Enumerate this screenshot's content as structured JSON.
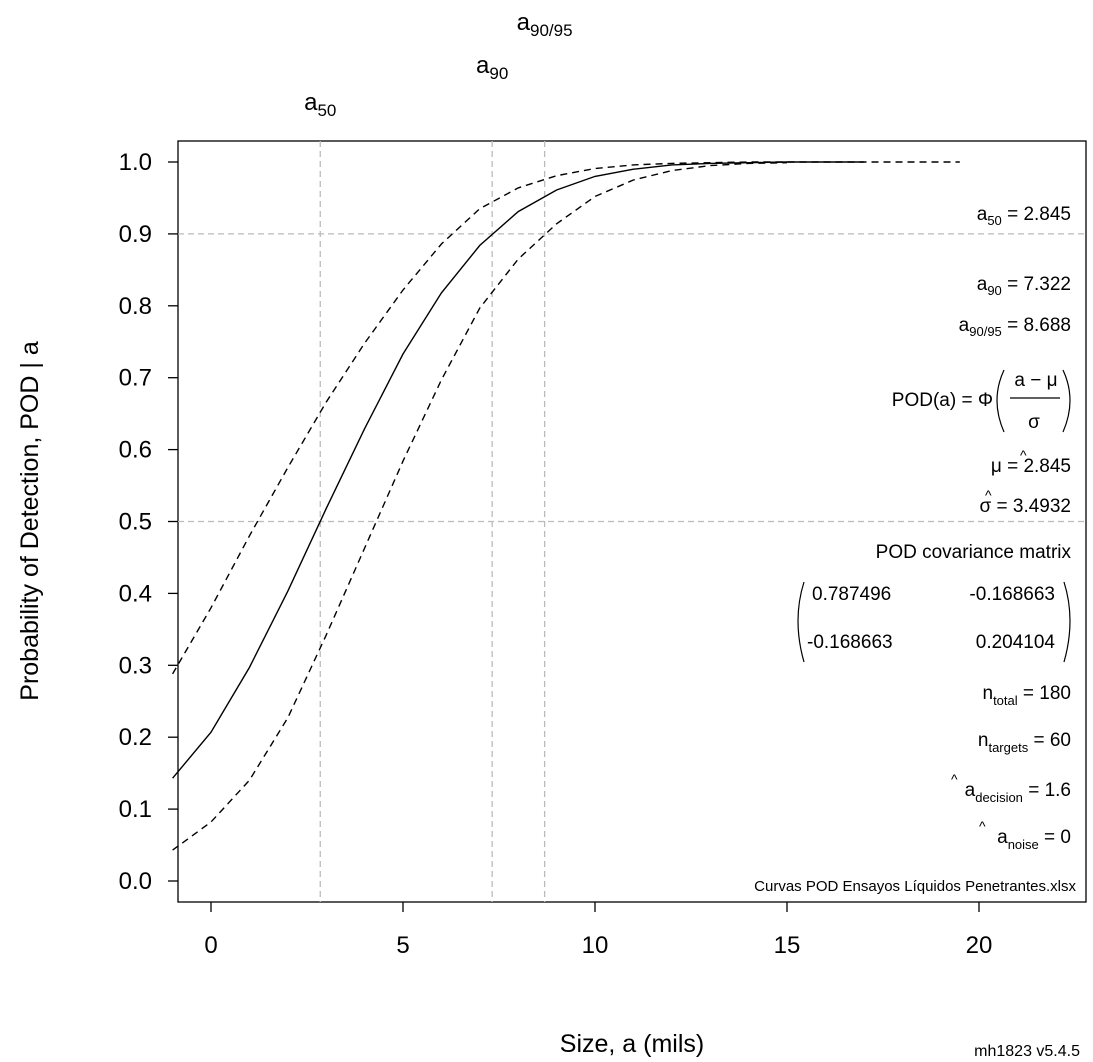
{
  "chart_data": {
    "type": "line",
    "xlabel": "Size, a  (mils)",
    "ylabel": "Probability of Detection, POD | a",
    "xlim": [
      -1.4,
      22.6
    ],
    "ylim": [
      0,
      1
    ],
    "xticks": [
      0,
      5,
      10,
      15,
      20
    ],
    "yticks": [
      0.0,
      0.1,
      0.2,
      0.3,
      0.4,
      0.5,
      0.6,
      0.7,
      0.8,
      0.9,
      1.0
    ],
    "grid": false,
    "legend": "none",
    "model": {
      "mu": 2.845,
      "sigma": 3.4932
    },
    "series": [
      {
        "style": "solid",
        "color": "#000000",
        "x": [
          -1,
          0,
          1,
          2,
          3,
          4,
          5,
          6,
          7,
          8,
          9,
          10,
          11,
          12,
          13,
          14,
          15,
          16,
          17
        ],
        "y": [
          0.143,
          0.207,
          0.297,
          0.403,
          0.518,
          0.629,
          0.733,
          0.818,
          0.884,
          0.931,
          0.961,
          0.98,
          0.99,
          0.996,
          0.998,
          0.999,
          1.0,
          1.0,
          1.0
        ]
      },
      {
        "style": "dashed",
        "color": "#000000",
        "x": [
          -1,
          0,
          1,
          2,
          3,
          4,
          5,
          6,
          7,
          8,
          9,
          10,
          11,
          12,
          13,
          14,
          15,
          16,
          17,
          18,
          19,
          19.5
        ],
        "y": [
          0.288,
          0.38,
          0.48,
          0.575,
          0.666,
          0.748,
          0.822,
          0.886,
          0.935,
          0.964,
          0.981,
          0.991,
          0.996,
          0.998,
          0.999,
          1.0,
          1.0,
          1.0,
          1.0,
          1.0,
          1.0,
          1.0
        ]
      },
      {
        "style": "dashed",
        "color": "#000000",
        "x": [
          -1,
          0,
          1,
          2,
          3,
          4,
          5,
          6,
          7,
          8,
          9,
          10,
          11,
          12,
          13,
          14,
          15
        ],
        "y": [
          0.043,
          0.082,
          0.14,
          0.227,
          0.342,
          0.463,
          0.584,
          0.697,
          0.797,
          0.865,
          0.914,
          0.952,
          0.975,
          0.988,
          0.995,
          0.998,
          0.999
        ]
      }
    ],
    "reference_lines": {
      "vertical": [
        {
          "x": 2.845,
          "label_main": "a",
          "label_sub": "50"
        },
        {
          "x": 7.322,
          "label_main": "a",
          "label_sub": "90"
        },
        {
          "x": 8.688,
          "label_main": "a",
          "label_sub": "90/95"
        }
      ],
      "horizontal": [
        0.5,
        0.9
      ],
      "color": "#bbbbbb"
    }
  },
  "annotations": {
    "a50": {
      "main": "a",
      "sub": "50",
      "value": " = 2.845"
    },
    "a90": {
      "main": "a",
      "sub": "90",
      "value": " = 7.322"
    },
    "a9095": {
      "main": "a",
      "sub": "90/95",
      "value": " = 8.688"
    },
    "formula": {
      "lhs": "POD(a) = Φ",
      "num": "a − μ",
      "den": "σ"
    },
    "mu_hat": {
      "symbol": "μ",
      "value": " = 2.845"
    },
    "sigma_hat": {
      "symbol": "σ",
      "value": " = 3.4932"
    },
    "cov_title": "POD covariance matrix",
    "cov": [
      [
        "0.787496",
        "-0.168663"
      ],
      [
        "-0.168663",
        "0.204104"
      ]
    ],
    "n_total": {
      "main": "n",
      "sub": "total",
      "value": " = 180"
    },
    "n_targets": {
      "main": "n",
      "sub": "targets",
      "value": " = 60"
    },
    "a_decision": {
      "main": "a",
      "sub": "decision",
      "value": " = 1.6"
    },
    "a_noise": {
      "main": "a",
      "sub": "noise",
      "value": " = 0"
    },
    "filename": "Curvas POD Ensayos Líquidos Penetrantes.xlsx",
    "version": "mh1823 v5.4.5"
  }
}
